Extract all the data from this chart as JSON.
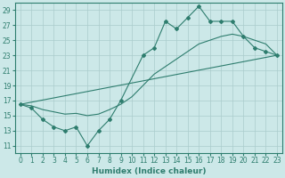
{
  "xlabel": "Humidex (Indice chaleur)",
  "main_series": {
    "x": [
      0,
      1,
      2,
      3,
      4,
      5,
      6,
      7,
      8,
      9,
      11,
      12,
      13,
      14,
      15,
      16,
      17,
      18,
      19,
      20,
      21,
      22,
      23
    ],
    "y": [
      16.5,
      16.0,
      14.5,
      13.5,
      13.0,
      13.5,
      11.0,
      13.0,
      14.5,
      17.0,
      23.0,
      24.0,
      27.5,
      26.5,
      28.0,
      29.5,
      27.5,
      27.5,
      27.5,
      25.5,
      24.0,
      23.5,
      23.0
    ]
  },
  "diagonal_series": {
    "x": [
      0,
      23
    ],
    "y": [
      16.5,
      23.0
    ]
  },
  "smooth_series": {
    "x": [
      0,
      1,
      2,
      3,
      4,
      5,
      6,
      7,
      8,
      9,
      10,
      11,
      12,
      13,
      14,
      15,
      16,
      17,
      18,
      19,
      20,
      21,
      22,
      23
    ],
    "y": [
      16.5,
      16.3,
      15.8,
      15.5,
      15.2,
      15.3,
      15.0,
      15.2,
      15.8,
      16.5,
      17.5,
      19.0,
      20.5,
      21.5,
      22.5,
      23.5,
      24.5,
      25.0,
      25.5,
      25.8,
      25.5,
      25.0,
      24.5,
      23.0
    ]
  },
  "ylim": [
    10,
    30
  ],
  "xlim": [
    -0.5,
    23.5
  ],
  "yticks": [
    11,
    13,
    15,
    17,
    19,
    21,
    23,
    25,
    27,
    29
  ],
  "xticks": [
    0,
    1,
    2,
    3,
    4,
    5,
    6,
    7,
    8,
    9,
    10,
    11,
    12,
    13,
    14,
    15,
    16,
    17,
    18,
    19,
    20,
    21,
    22,
    23
  ],
  "line_color": "#2e7d6e",
  "bg_color": "#cce8e8",
  "grid_color": "#aacccc",
  "tick_fontsize": 5.5,
  "xlabel_fontsize": 6.5
}
